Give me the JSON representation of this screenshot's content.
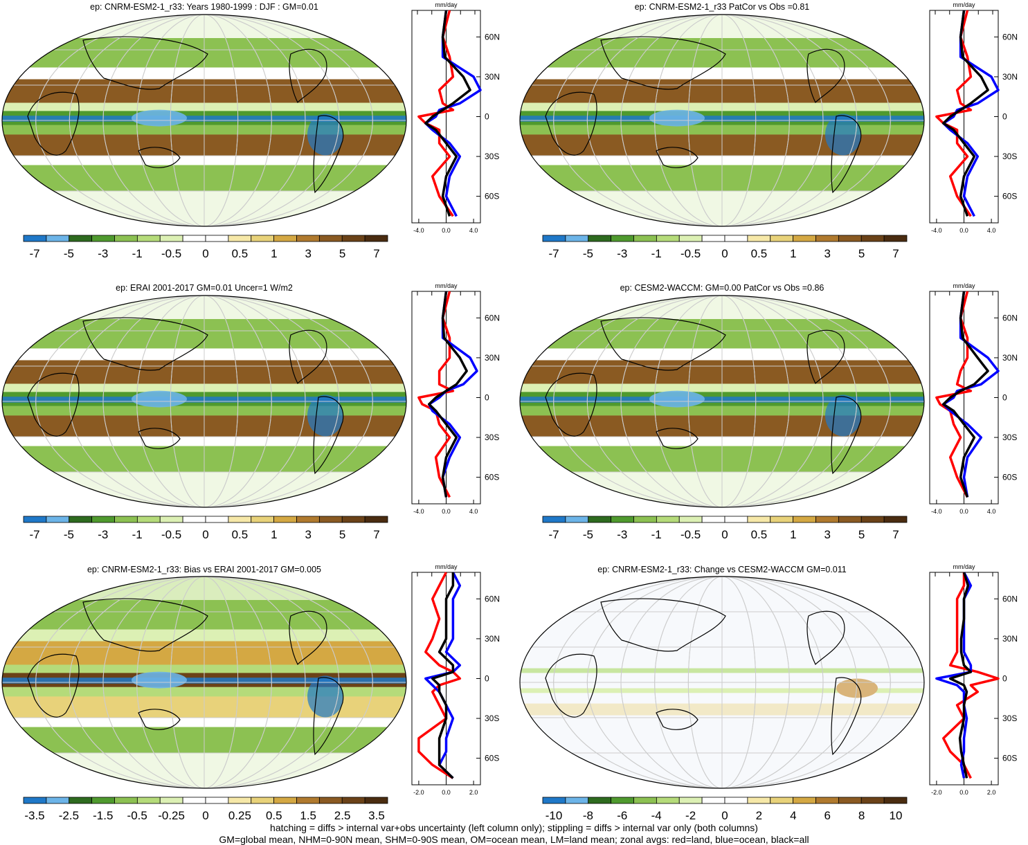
{
  "colors": {
    "land": "#ff0000",
    "ocean": "#0000ff",
    "all": "#000000",
    "scale": [
      "#1f78c8",
      "#6cb4e8",
      "#2e6b1f",
      "#4f9a2e",
      "#8cc152",
      "#b5db7a",
      "#dcf0b4",
      "#ffffff",
      "#ffffff",
      "#f6e8a8",
      "#e8d27a",
      "#d4a843",
      "#b07a2e",
      "#8a5a22",
      "#6b4218",
      "#4a2c10"
    ]
  },
  "zonal_axis": {
    "unit": "mm/day",
    "lat_labels": [
      "60N",
      "30N",
      "0",
      "30S",
      "60S"
    ],
    "lat_values": [
      60,
      30,
      0,
      -30,
      -60
    ]
  },
  "panels": [
    {
      "title": "ep: CNRM-ESM2-1_r33: Years 1980-1999 : DJF : GM=0.01",
      "cbar_labels": [
        "-7",
        "-5",
        "-3",
        "-1",
        "-0.5",
        "0",
        "0.5",
        "1",
        "3",
        "5",
        "7"
      ],
      "zonal_ticks": [
        "-4.0",
        "0.0",
        "4.0"
      ],
      "zonal_tick_values": [
        -4,
        0,
        4
      ],
      "zonal_range": [
        -5,
        5
      ]
    },
    {
      "title": "ep: CNRM-ESM2-1_r33 PatCor vs Obs =0.81",
      "cbar_labels": [
        "-7",
        "-5",
        "-3",
        "-1",
        "-0.5",
        "0",
        "0.5",
        "1",
        "3",
        "5",
        "7"
      ],
      "zonal_ticks": [
        "-4.0",
        "0.0",
        "4.0"
      ],
      "zonal_tick_values": [
        -4,
        0,
        4
      ],
      "zonal_range": [
        -5,
        5
      ]
    },
    {
      "title": "ep: ERAI 2001-2017 GM=0.01 Uncer=1 W/m2",
      "cbar_labels": [
        "-7",
        "-5",
        "-3",
        "-1",
        "-0.5",
        "0",
        "0.5",
        "1",
        "3",
        "5",
        "7"
      ],
      "zonal_ticks": [
        "-4.0",
        "0.0",
        "4.0"
      ],
      "zonal_tick_values": [
        -4,
        0,
        4
      ],
      "zonal_range": [
        -5,
        5
      ]
    },
    {
      "title": "ep: CESM2-WACCM: GM=0.00 PatCor vs Obs =0.86",
      "cbar_labels": [
        "-7",
        "-5",
        "-3",
        "-1",
        "-0.5",
        "0",
        "0.5",
        "1",
        "3",
        "5",
        "7"
      ],
      "zonal_ticks": [
        "-4.0",
        "0.0",
        "4.0"
      ],
      "zonal_tick_values": [
        -4,
        0,
        4
      ],
      "zonal_range": [
        -5,
        5
      ]
    },
    {
      "title": "ep: CNRM-ESM2-1_r33: Bias vs ERAI 2001-2017 GM=0.005",
      "cbar_labels": [
        "-3.5",
        "-2.5",
        "-1.5",
        "-0.5",
        "-0.25",
        "0",
        "0.25",
        "0.5",
        "1.5",
        "2.5",
        "3.5"
      ],
      "zonal_ticks": [
        "-2.0",
        "0.0",
        "2.0"
      ],
      "zonal_tick_values": [
        -2,
        0,
        2
      ],
      "zonal_range": [
        -2.5,
        2.5
      ]
    },
    {
      "title": "ep: CNRM-ESM2-1_r33: Change vs CESM2-WACCM GM=0.011",
      "cbar_labels": [
        "-10",
        "-8",
        "-6",
        "-4",
        "-2",
        "0",
        "2",
        "4",
        "6",
        "8",
        "10"
      ],
      "zonal_ticks": [
        "-2.0",
        "0.0",
        "2.0"
      ],
      "zonal_tick_values": [
        -2,
        0,
        2
      ],
      "zonal_range": [
        -2.5,
        2.5
      ]
    }
  ],
  "footer": {
    "line1": "hatching = diffs > internal var+obs uncertainty (left column only); stippling = diffs > internal var only (both columns)",
    "line2": "GM=global mean, NHM=0-90N mean, SHM=0-90S mean, OM=ocean mean, LM=land mean; zonal avgs: red=land, blue=ocean, black=all"
  },
  "chart_data": [
    {
      "type": "heatmap",
      "title": "ep: CNRM-ESM2-1_r33: Years 1980-1999 : DJF : GM=0.01",
      "colorbar_ticks": [
        -7,
        -5,
        -3,
        -1,
        -0.5,
        0,
        0.5,
        1,
        3,
        5,
        7
      ],
      "zonal_mean": {
        "lat": [
          80,
          60,
          45,
          30,
          20,
          10,
          5,
          0,
          -5,
          -10,
          -20,
          -30,
          -45,
          -60,
          -75
        ],
        "land": [
          0.5,
          -0.5,
          0.5,
          1,
          -1,
          -0.5,
          1,
          -4,
          -3,
          -1,
          -1,
          0.5,
          -2,
          -1,
          1
        ],
        "ocean": [
          0,
          -0.5,
          -0.5,
          4,
          5,
          2,
          -1,
          -1.5,
          -3,
          -2,
          0.5,
          2,
          0.5,
          0,
          1.5
        ],
        "all": [
          0,
          -0.5,
          -0.2,
          2.5,
          3.5,
          1,
          -0.5,
          -2,
          -3,
          -1.5,
          0,
          1.5,
          0,
          -0.5,
          0.5
        ]
      }
    },
    {
      "type": "heatmap",
      "title": "ep: CNRM-ESM2-1_r33 PatCor vs Obs =0.81",
      "colorbar_ticks": [
        -7,
        -5,
        -3,
        -1,
        -0.5,
        0,
        0.5,
        1,
        3,
        5,
        7
      ],
      "zonal_mean": {
        "lat": [
          80,
          60,
          45,
          30,
          20,
          10,
          5,
          0,
          -5,
          -10,
          -20,
          -30,
          -45,
          -60,
          -75
        ],
        "land": [
          0.5,
          -0.5,
          0.5,
          1,
          -1,
          -0.5,
          1,
          -4,
          -3,
          -1,
          -1,
          0.5,
          -2,
          -1,
          1
        ],
        "ocean": [
          0,
          -0.5,
          -0.5,
          4,
          5,
          2,
          -1,
          -1.5,
          -3,
          -2,
          0.5,
          2,
          0.5,
          0,
          1.5
        ],
        "all": [
          0,
          -0.5,
          -0.2,
          2.5,
          3.5,
          1,
          -0.5,
          -2,
          -3,
          -1.5,
          0,
          1.5,
          0,
          -0.5,
          0.5
        ]
      }
    },
    {
      "type": "heatmap",
      "title": "ep: ERAI 2001-2017 GM=0.01 Uncer=1 W/m2",
      "colorbar_ticks": [
        -7,
        -5,
        -3,
        -1,
        -0.5,
        0,
        0.5,
        1,
        3,
        5,
        7
      ],
      "zonal_mean": {
        "lat": [
          80,
          60,
          45,
          30,
          20,
          10,
          5,
          0,
          -5,
          -10,
          -20,
          -30,
          -45,
          -60,
          -75
        ],
        "land": [
          0.5,
          -0.5,
          0.5,
          0.5,
          -1,
          -1,
          1,
          -4,
          -3.5,
          -1.5,
          -1,
          0.5,
          -1.5,
          -1,
          0.5
        ],
        "ocean": [
          0,
          -0.5,
          -0.5,
          3.5,
          4.5,
          2.5,
          0,
          -1,
          -2.5,
          -2,
          0.5,
          2,
          0.5,
          -0.5,
          0
        ],
        "all": [
          0,
          -0.5,
          -0.3,
          2,
          3,
          1.5,
          0,
          -1.5,
          -2.5,
          -1.5,
          0,
          1.5,
          0,
          -0.5,
          0
        ]
      }
    },
    {
      "type": "heatmap",
      "title": "ep: CESM2-WACCM: GM=0.00 PatCor vs Obs =0.86",
      "colorbar_ticks": [
        -7,
        -5,
        -3,
        -1,
        -0.5,
        0,
        0.5,
        1,
        3,
        5,
        7
      ],
      "zonal_mean": {
        "lat": [
          80,
          60,
          45,
          30,
          20,
          10,
          5,
          0,
          -5,
          -10,
          -20,
          -30,
          -45,
          -60,
          -75
        ],
        "land": [
          0.5,
          -0.5,
          0.5,
          0.5,
          -0.5,
          -1,
          1,
          -4,
          -3.5,
          -2,
          -1.5,
          -0.5,
          -2,
          -1,
          0.5
        ],
        "ocean": [
          0,
          -0.5,
          -0.5,
          3.5,
          5,
          2.5,
          -1,
          -1.5,
          -3,
          -2,
          0.5,
          2.5,
          0.5,
          0,
          0.5
        ],
        "all": [
          0,
          -0.5,
          -0.2,
          2,
          3.5,
          1.5,
          -0.5,
          -2,
          -3,
          -1.5,
          0,
          1.5,
          0,
          -0.5,
          0.5
        ]
      }
    },
    {
      "type": "heatmap",
      "title": "ep: CNRM-ESM2-1_r33: Bias vs ERAI 2001-2017 GM=0.005",
      "colorbar_ticks": [
        -3.5,
        -2.5,
        -1.5,
        -0.5,
        -0.25,
        0,
        0.25,
        0.5,
        1.5,
        2.5,
        3.5
      ],
      "zonal_mean": {
        "lat": [
          80,
          70,
          60,
          45,
          30,
          20,
          10,
          5,
          0,
          -5,
          -10,
          -20,
          -30,
          -45,
          -55,
          -65,
          -75
        ],
        "land": [
          0,
          -0.5,
          -1,
          -0.5,
          -1,
          -1.5,
          -0.5,
          0.5,
          1,
          -0.5,
          -1,
          -0.5,
          0,
          -2,
          -2,
          -1,
          0.5
        ],
        "ocean": [
          0.5,
          1,
          0.5,
          0.5,
          0.5,
          0,
          1,
          0.5,
          -1.5,
          -1,
          -0.5,
          0,
          0.5,
          0,
          0,
          -0.5,
          0.5
        ],
        "all": [
          0.5,
          0.5,
          0,
          0,
          0,
          -0.5,
          0.5,
          0.5,
          -1,
          -0.5,
          -0.5,
          0,
          0,
          -0.5,
          -0.5,
          -0.5,
          0.5
        ]
      }
    },
    {
      "type": "heatmap",
      "title": "ep: CNRM-ESM2-1_r33: Change vs CESM2-WACCM GM=0.011",
      "colorbar_ticks": [
        -10,
        -8,
        -6,
        -4,
        -2,
        0,
        2,
        4,
        6,
        8,
        10
      ],
      "zonal_mean": {
        "lat": [
          80,
          70,
          60,
          45,
          30,
          20,
          10,
          5,
          0,
          -5,
          -10,
          -20,
          -30,
          -45,
          -55,
          -65,
          -75
        ],
        "land": [
          0,
          0,
          -0.5,
          -0.5,
          -0.5,
          -0.5,
          -1,
          1,
          2.5,
          0.5,
          1,
          -0.5,
          0,
          -1.5,
          -1,
          0,
          0.5
        ],
        "ocean": [
          0,
          0.5,
          0,
          0,
          0,
          0,
          0.5,
          0.5,
          -2,
          -0.5,
          0,
          0,
          0.2,
          0,
          0,
          -0.2,
          0
        ],
        "all": [
          0,
          0.3,
          0,
          0,
          -0.2,
          -0.2,
          0,
          0.5,
          -1,
          0,
          0.2,
          0,
          0,
          -0.3,
          -0.2,
          0,
          0.2
        ]
      }
    }
  ]
}
